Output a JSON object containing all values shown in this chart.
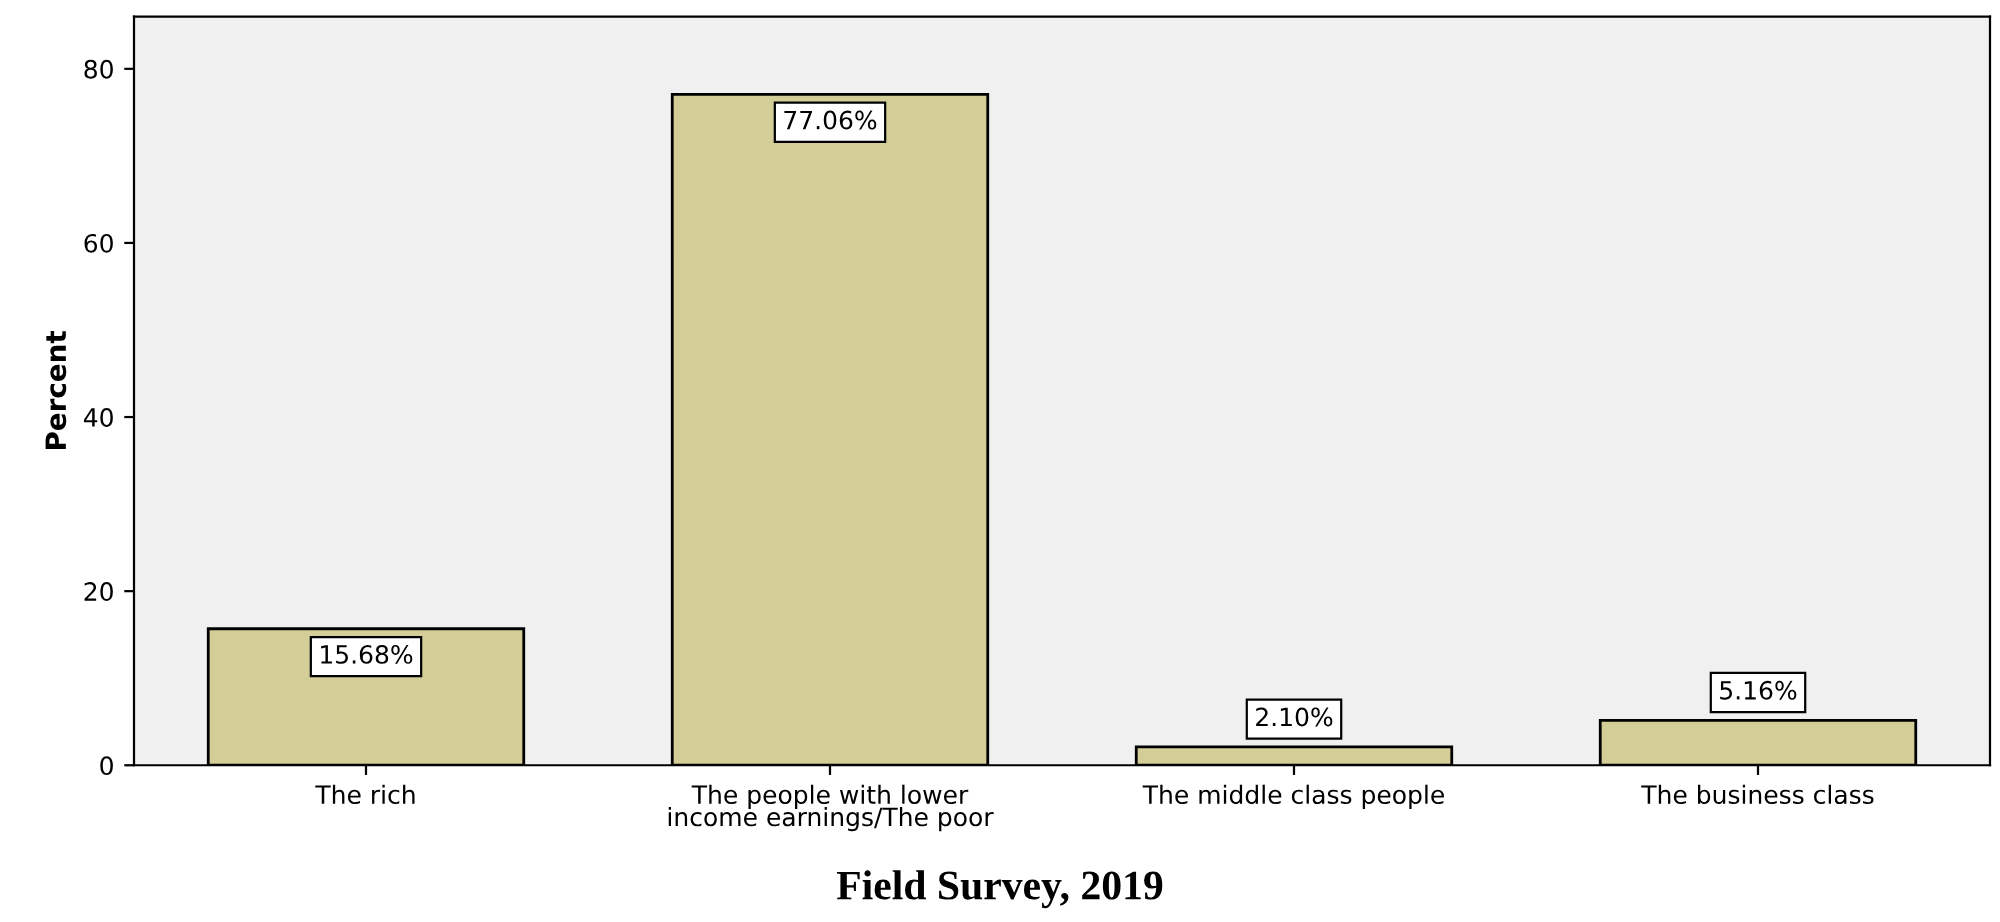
{
  "chart_data": {
    "type": "bar",
    "categories": [
      "The rich",
      "The people with lower income earnings/The poor",
      "The middle class people",
      "The business class"
    ],
    "values": [
      15.68,
      77.06,
      2.1,
      5.16
    ],
    "value_labels": [
      "15.68%",
      "77.06%",
      "2.10%",
      "5.16%"
    ],
    "color": "#d3ce98",
    "ylabel": "Percent",
    "ylim": [
      0,
      86
    ],
    "yticks": [
      0,
      20,
      40,
      60,
      80
    ],
    "grid": false,
    "legend": false,
    "annotations": [
      "Field Survey, 2019"
    ]
  }
}
